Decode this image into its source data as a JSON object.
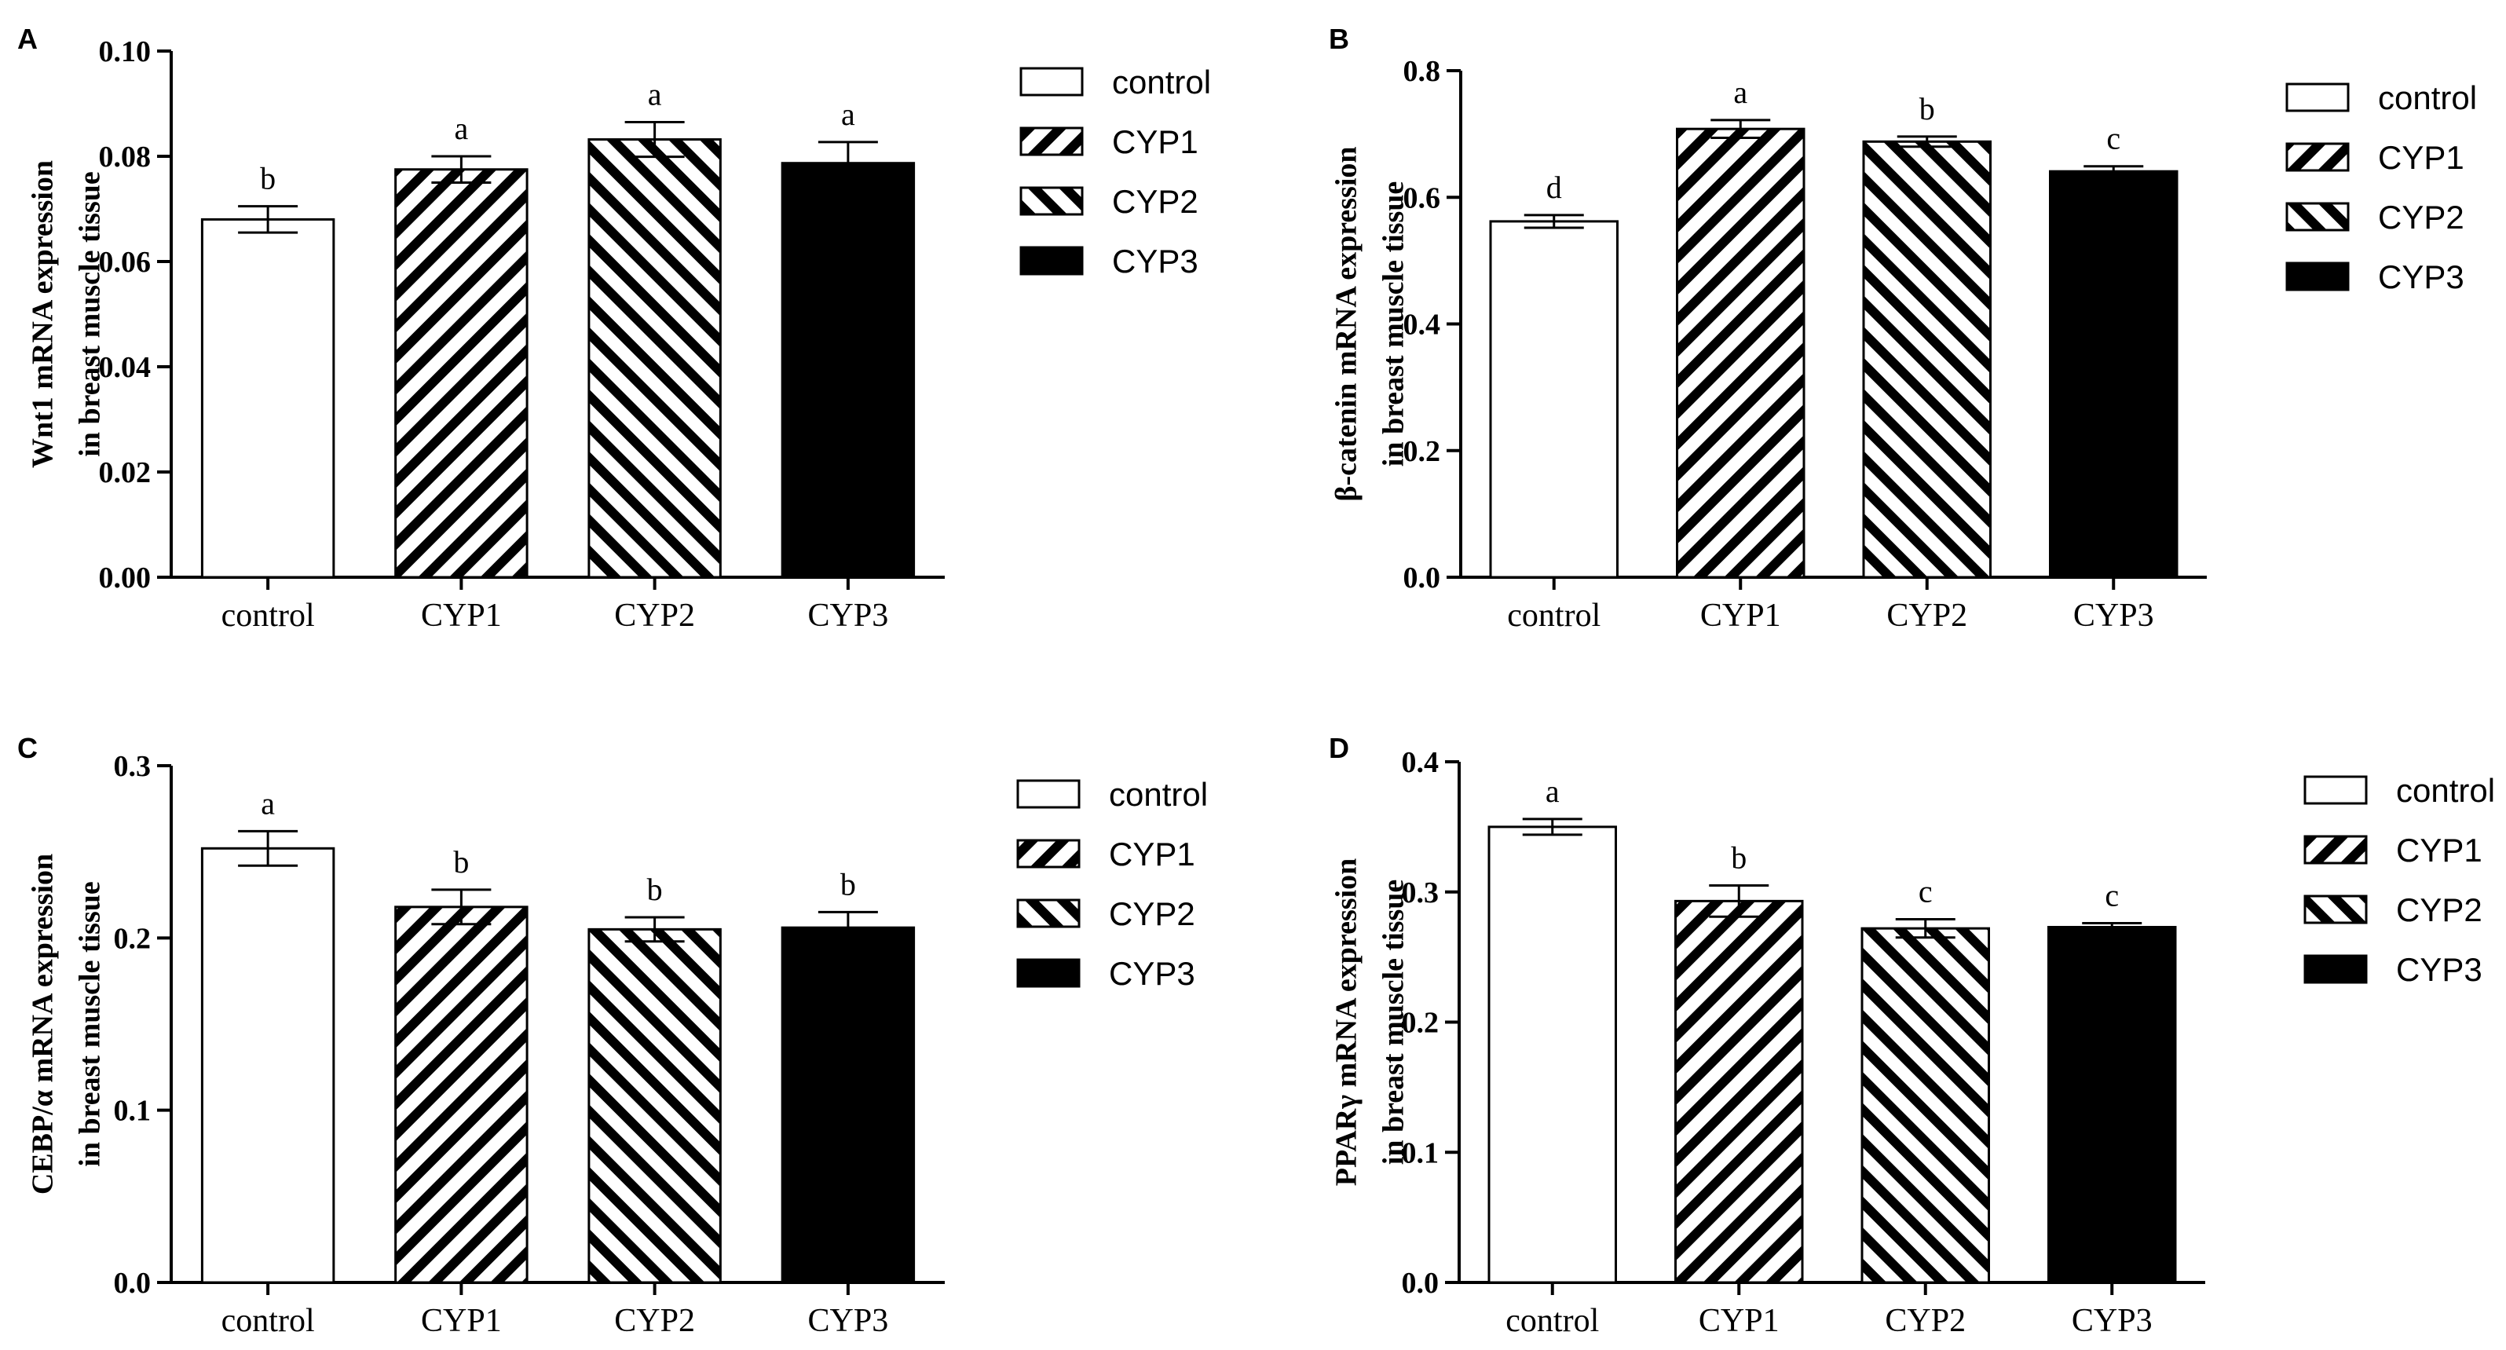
{
  "figure": {
    "patterns": {
      "control": "white",
      "CYP1": "hatch-forward",
      "CYP2": "hatch-back",
      "CYP3": "solid-black"
    },
    "colors": {
      "ink": "#000000",
      "background": "#ffffff"
    }
  },
  "chart_data": [
    {
      "type": "bar",
      "panel": "A",
      "categories": [
        "control",
        "CYP1",
        "CYP2",
        "CYP3"
      ],
      "values": [
        0.068,
        0.0775,
        0.0832,
        0.0787
      ],
      "errors": [
        0.0025,
        0.0025,
        0.0033,
        0.004
      ],
      "significance": [
        "b",
        "a",
        "a",
        "a"
      ],
      "ylabel_line1": "Wnt1 mRNA expression",
      "ylabel_line2": "in breast muscle tissue",
      "ylim": [
        0,
        0.1
      ],
      "yticks": [
        0.0,
        0.02,
        0.04,
        0.06,
        0.08,
        0.1
      ],
      "ytick_labels": [
        "0.00",
        "0.02",
        "0.04",
        "0.06",
        "0.08",
        "0.10"
      ],
      "legend": [
        "control",
        "CYP1",
        "CYP2",
        "CYP3"
      ]
    },
    {
      "type": "bar",
      "panel": "B",
      "categories": [
        "control",
        "CYP1",
        "CYP2",
        "CYP3"
      ],
      "values": [
        0.562,
        0.708,
        0.688,
        0.641
      ],
      "errors": [
        0.01,
        0.014,
        0.008,
        0.008
      ],
      "significance": [
        "d",
        "a",
        "b",
        "c"
      ],
      "ylabel_line1": "β-catenin mRNA expression",
      "ylabel_line2": "in breast muscle tissue",
      "ylim": [
        0,
        0.8
      ],
      "yticks": [
        0.0,
        0.2,
        0.4,
        0.6,
        0.8
      ],
      "ytick_labels": [
        "0.0",
        "0.2",
        "0.4",
        "0.6",
        "0.8"
      ],
      "legend": [
        "control",
        "CYP1",
        "CYP2",
        "CYP3"
      ]
    },
    {
      "type": "bar",
      "panel": "C",
      "categories": [
        "control",
        "CYP1",
        "CYP2",
        "CYP3"
      ],
      "values": [
        0.252,
        0.218,
        0.205,
        0.206
      ],
      "errors": [
        0.01,
        0.01,
        0.007,
        0.009
      ],
      "significance": [
        "a",
        "b",
        "b",
        "b"
      ],
      "ylabel_line1": "CEBP/α mRNA expression",
      "ylabel_line2": "in breast muscle tissue",
      "ylim": [
        0,
        0.3
      ],
      "yticks": [
        0.0,
        0.1,
        0.2,
        0.3
      ],
      "ytick_labels": [
        "0.0",
        "0.1",
        "0.2",
        "0.3"
      ],
      "legend": [
        "control",
        "CYP1",
        "CYP2",
        "CYP3"
      ]
    },
    {
      "type": "bar",
      "panel": "D",
      "categories": [
        "control",
        "CYP1",
        "CYP2",
        "CYP3"
      ],
      "values": [
        0.35,
        0.293,
        0.272,
        0.273
      ],
      "errors": [
        0.006,
        0.012,
        0.007,
        0.003
      ],
      "significance": [
        "a",
        "b",
        "c",
        "c"
      ],
      "ylabel_line1": "PPARγ mRNA expression",
      "ylabel_line2": "in breast muscle tissue",
      "ylim": [
        0,
        0.4
      ],
      "yticks": [
        0.0,
        0.1,
        0.2,
        0.3,
        0.4
      ],
      "ytick_labels": [
        "0.0",
        "0.1",
        "0.2",
        "0.3",
        "0.4"
      ],
      "legend": [
        "control",
        "CYP1",
        "CYP2",
        "CYP3"
      ]
    }
  ]
}
